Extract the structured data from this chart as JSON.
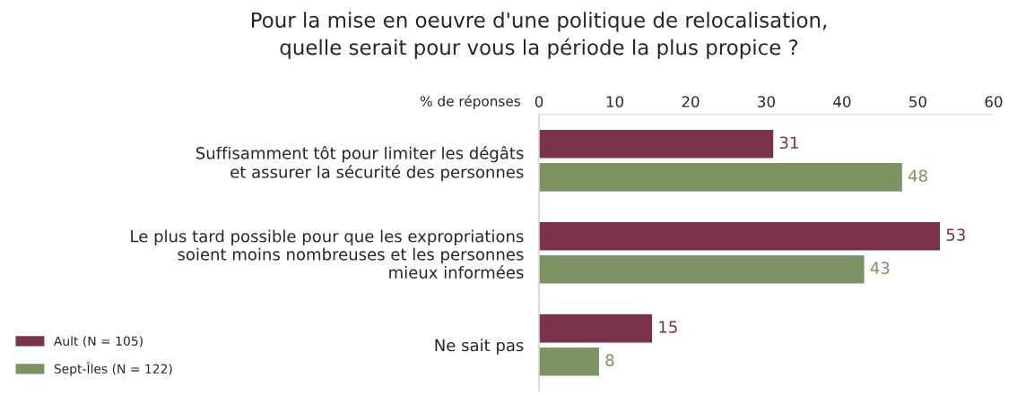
{
  "chart_data": {
    "type": "bar",
    "orientation": "horizontal",
    "title": "Pour la mise en oeuvre d'une politique de relocalisation,\nquelle serait pour vous la période la plus propice ?",
    "xlabel": "% de réponses",
    "categories": [
      "Suffisamment tôt pour limiter les dégâts\net assurer la sécurité des personnes",
      "Le plus tard possible pour que les expropriations\nsoient moins nombreuses et les personnes\nmieux informées",
      "Ne sait pas"
    ],
    "series": [
      {
        "name": "Ault (N = 105)",
        "color": "#7b334b",
        "values": [
          31,
          53,
          15
        ]
      },
      {
        "name": "Sept-Îles (N = 122)",
        "color": "#7e9364",
        "values": [
          48,
          43,
          8
        ]
      }
    ],
    "xlim": [
      0,
      60
    ],
    "xticks": [
      0,
      10,
      20,
      30,
      40,
      50,
      60
    ],
    "data_labels": true,
    "grid": false,
    "legend": "bottom left"
  }
}
